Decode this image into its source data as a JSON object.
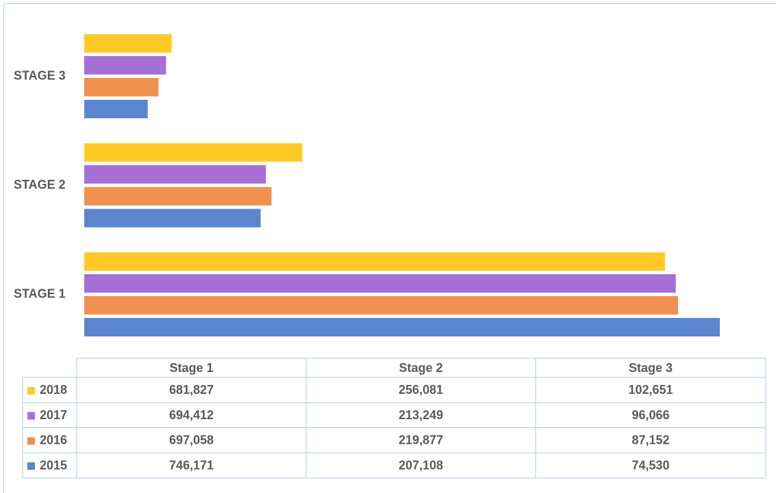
{
  "chart_data": {
    "type": "bar",
    "orientation": "horizontal",
    "categories": [
      "STAGE 1",
      "STAGE 2",
      "STAGE 3"
    ],
    "table_headers": [
      "Stage 1",
      "Stage 2",
      "Stage 3"
    ],
    "xlim": [
      0,
      800000
    ],
    "series": [
      {
        "name": "2018",
        "color": "#ffc926",
        "values": [
          681827,
          256081,
          102651
        ],
        "value_labels": [
          "681,827",
          "256,081",
          "102,651"
        ]
      },
      {
        "name": "2017",
        "color": "#a66fd6",
        "values": [
          694412,
          213249,
          96066
        ],
        "value_labels": [
          "694,412",
          "213,249",
          "96,066"
        ]
      },
      {
        "name": "2016",
        "color": "#f0914f",
        "values": [
          697058,
          219877,
          87152
        ],
        "value_labels": [
          "697,058",
          "219,877",
          "87,152"
        ]
      },
      {
        "name": "2015",
        "color": "#5b86cf",
        "values": [
          746171,
          207108,
          74530
        ],
        "value_labels": [
          "746,171",
          "207,108",
          "74,530"
        ]
      }
    ]
  }
}
